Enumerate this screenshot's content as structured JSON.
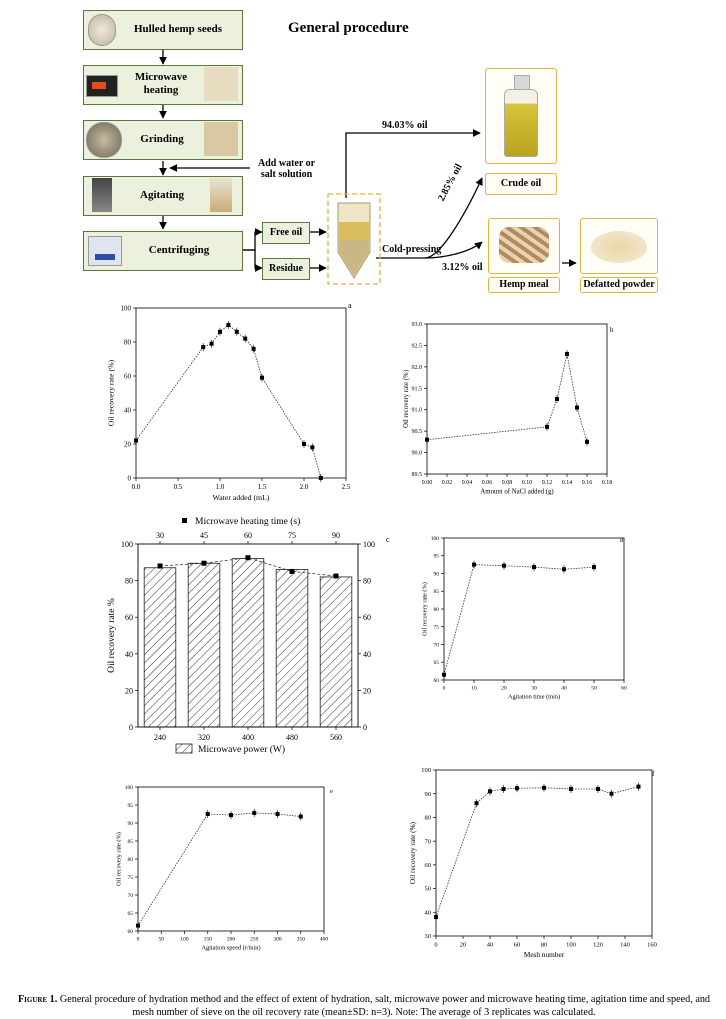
{
  "figure_title": "General procedure",
  "flow": {
    "steps": [
      "Hulled hemp seeds",
      "Microwave\nheating",
      "Grinding",
      "Agitating",
      "Centrifuging"
    ],
    "add_water": "Add water or\nsalt solution",
    "free_oil": "Free oil",
    "residue": "Residue",
    "cold_pressing": "Cold-pressing",
    "pct_top": "94.03% oil",
    "pct_mid": "2.85% oil",
    "pct_bottom": "3.12% oil",
    "crude_oil": "Crude oil",
    "hemp_meal": "Hemp meal",
    "defatted": "Defatted powder"
  },
  "chart_data": [
    {
      "panel": "a",
      "type": "line",
      "xlabel": "Water added (mL)",
      "ylabel": "Oil recovery rate (%)",
      "xlim": [
        0,
        2.5
      ],
      "ylim": [
        0,
        100
      ],
      "xticks": [
        "0.0",
        "0.5",
        "1.0",
        "1.5",
        "2.0",
        "2.5"
      ],
      "yticks": [
        "0",
        "20",
        "40",
        "60",
        "80",
        "100"
      ],
      "x": [
        0,
        0.8,
        0.9,
        1.0,
        1.1,
        1.2,
        1.3,
        1.4,
        1.5,
        2.0,
        2.1,
        2.2
      ],
      "y": [
        22,
        77,
        79,
        86,
        90,
        86,
        82,
        76,
        59,
        20,
        18,
        0
      ]
    },
    {
      "panel": "b",
      "type": "line",
      "xlabel": "Amount of NaCl added (g)",
      "ylabel": "Oil recovery rate (%)",
      "xlim": [
        0,
        0.18
      ],
      "ylim": [
        89.5,
        93.0
      ],
      "xticks": [
        "0.00",
        "0.02",
        "0.04",
        "0.06",
        "0.08",
        "0.10",
        "0.12",
        "0.14",
        "0.16",
        "0.18"
      ],
      "yticks": [
        "89.5",
        "90.0",
        "90.5",
        "91.0",
        "91.5",
        "92.0",
        "92.5",
        "93.0"
      ],
      "x": [
        0,
        0.12,
        0.13,
        0.14,
        0.15,
        0.16
      ],
      "y": [
        90.3,
        90.6,
        91.25,
        92.3,
        91.05,
        90.25
      ]
    },
    {
      "panel": "c",
      "type": "bar",
      "legend_top": "Microwave heating time (s)",
      "legend_bottom": "Microwave power (W)",
      "ylabel": "Oil recovery rate  %",
      "categories": [
        "240",
        "320",
        "400",
        "480",
        "560"
      ],
      "top_ticks": [
        "30",
        "45",
        "60",
        "75",
        "90"
      ],
      "yticks": [
        "0",
        "20",
        "40",
        "60",
        "80",
        "100"
      ],
      "ylim": [
        0,
        100
      ],
      "values": [
        87,
        89.5,
        92,
        86,
        82
      ],
      "points": [
        88,
        89.5,
        92.5,
        85,
        82.5
      ]
    },
    {
      "panel": "d",
      "type": "line",
      "xlabel": "Agitation time (min)",
      "ylabel": "Oil recovery rate (%)",
      "xlim": [
        0,
        60
      ],
      "ylim": [
        60,
        100
      ],
      "xticks": [
        "0",
        "10",
        "20",
        "30",
        "40",
        "50",
        "60"
      ],
      "yticks": [
        "60",
        "65",
        "70",
        "75",
        "80",
        "85",
        "90",
        "95",
        "100"
      ],
      "x": [
        0,
        10,
        20,
        30,
        40,
        50
      ],
      "y": [
        61.5,
        92.5,
        92.2,
        91.8,
        91.2,
        91.8
      ]
    },
    {
      "panel": "e",
      "type": "line",
      "xlabel": "Agitation speed (r/min)",
      "ylabel": "Oil recovery rate (%)",
      "xlim": [
        0,
        400
      ],
      "ylim": [
        60,
        100
      ],
      "xticks": [
        "0",
        "50",
        "100",
        "150",
        "200",
        "250",
        "300",
        "350",
        "400"
      ],
      "yticks": [
        "60",
        "65",
        "70",
        "75",
        "80",
        "85",
        "90",
        "95",
        "100"
      ],
      "x": [
        0,
        150,
        200,
        250,
        300,
        350
      ],
      "y": [
        61.5,
        92.5,
        92.2,
        92.8,
        92.5,
        91.8
      ]
    },
    {
      "panel": "f",
      "type": "line",
      "xlabel": "Mesh number",
      "ylabel": "Oil recovery rate (%)",
      "xlim": [
        0,
        160
      ],
      "ylim": [
        30,
        100
      ],
      "xticks": [
        "0",
        "20",
        "40",
        "60",
        "80",
        "100",
        "120",
        "140",
        "160"
      ],
      "yticks": [
        "30",
        "40",
        "50",
        "60",
        "70",
        "80",
        "90",
        "100"
      ],
      "x": [
        0,
        30,
        40,
        50,
        60,
        80,
        100,
        120,
        130,
        150
      ],
      "y": [
        38,
        86,
        91,
        92,
        92.3,
        92.5,
        92,
        92,
        90,
        93
      ]
    }
  ],
  "caption": {
    "label": "Figure 1.",
    "text": " General procedure of hydration method and the effect of extent of hydration, salt, microwave power and microwave heating time, agitation time and speed, and mesh number of sieve on the oil recovery rate (mean±SD: n=3). Note: The average of 3 replicates was calculated."
  }
}
